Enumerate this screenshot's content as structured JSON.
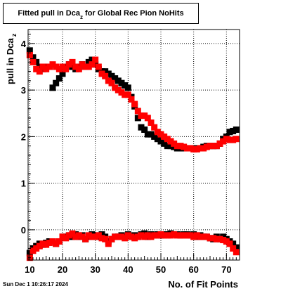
{
  "title": {
    "main": "Fitted pull in Dca",
    "subscript": "z",
    "suffix": "for Global Rec Pion NoHits"
  },
  "timestamp": "Sun Dec  1 10:26:17 2024",
  "chart_data": {
    "type": "scatter",
    "xlabel": "No. of Fit Points",
    "ylabel": "pull in Dca",
    "ylabel_subscript": "z",
    "xlim": [
      9.5,
      74
    ],
    "ylim": [
      -0.65,
      4.3
    ],
    "x_ticks": [
      10,
      20,
      30,
      40,
      50,
      60,
      70
    ],
    "y_ticks": [
      0,
      1,
      2,
      3,
      4
    ],
    "grid": true,
    "legend": "none",
    "series": [
      {
        "color": "#000000",
        "x": [
          10,
          11,
          12,
          13,
          14,
          15,
          16,
          17,
          18,
          19,
          20,
          21,
          22,
          23,
          24,
          25,
          26,
          27,
          28,
          29,
          30,
          31,
          32,
          33,
          34,
          35,
          36,
          37,
          38,
          39,
          40,
          41,
          42,
          43,
          44,
          45,
          46,
          47,
          48,
          49,
          50,
          51,
          52,
          53,
          54,
          55,
          56,
          57,
          58,
          59,
          60,
          61,
          62,
          63,
          64,
          65,
          66,
          67,
          68,
          69,
          70,
          71,
          72,
          73
        ],
        "y": [
          3.85,
          3.7,
          3.6,
          3.5,
          3.45,
          3.5,
          3.5,
          3.05,
          3.15,
          3.25,
          3.35,
          3.5,
          3.55,
          3.5,
          3.45,
          3.5,
          3.55,
          3.5,
          3.6,
          3.65,
          3.55,
          3.45,
          3.4,
          3.4,
          3.35,
          3.3,
          3.25,
          3.2,
          3.15,
          3.1,
          3.05,
          2.85,
          2.65,
          2.4,
          2.2,
          2.15,
          2.05,
          2.05,
          2.0,
          1.95,
          1.9,
          1.85,
          1.8,
          1.8,
          1.78,
          1.75,
          1.75,
          1.75,
          1.75,
          1.75,
          1.75,
          1.75,
          1.75,
          1.78,
          1.8,
          1.8,
          1.8,
          1.8,
          1.85,
          1.95,
          2.0,
          2.1,
          2.12,
          2.15
        ]
      },
      {
        "color": "#ff0000",
        "x": [
          10,
          11,
          12,
          13,
          14,
          15,
          16,
          17,
          18,
          19,
          20,
          21,
          22,
          23,
          24,
          25,
          26,
          27,
          28,
          29,
          30,
          31,
          32,
          33,
          34,
          35,
          36,
          37,
          38,
          39,
          40,
          41,
          42,
          43,
          44,
          45,
          46,
          47,
          48,
          49,
          50,
          51,
          52,
          53,
          54,
          55,
          56,
          57,
          58,
          59,
          60,
          61,
          62,
          63,
          64,
          65,
          66,
          67,
          68,
          69,
          70,
          71,
          72,
          73
        ],
        "y": [
          3.75,
          3.6,
          3.45,
          3.4,
          3.5,
          3.45,
          3.5,
          3.55,
          3.5,
          3.45,
          3.5,
          3.45,
          3.55,
          3.6,
          3.5,
          3.45,
          3.55,
          3.5,
          3.5,
          3.55,
          3.65,
          3.5,
          3.35,
          3.3,
          3.2,
          3.15,
          3.05,
          3.0,
          2.95,
          2.9,
          2.9,
          2.8,
          2.7,
          2.55,
          2.45,
          2.45,
          2.4,
          2.3,
          2.2,
          2.1,
          2.05,
          2.0,
          1.95,
          1.9,
          1.85,
          1.8,
          1.8,
          1.78,
          1.75,
          1.75,
          1.73,
          1.73,
          1.75,
          1.75,
          1.78,
          1.8,
          1.8,
          1.8,
          1.85,
          1.9,
          1.95,
          1.93,
          1.93,
          1.95
        ]
      },
      {
        "color": "#000000",
        "x": [
          10,
          11,
          12,
          13,
          14,
          15,
          16,
          17,
          18,
          19,
          20,
          21,
          22,
          23,
          24,
          25,
          26,
          27,
          28,
          29,
          30,
          31,
          32,
          33,
          34,
          35,
          36,
          37,
          38,
          39,
          40,
          41,
          42,
          43,
          44,
          45,
          46,
          47,
          48,
          49,
          50,
          51,
          52,
          53,
          54,
          55,
          56,
          57,
          58,
          59,
          60,
          61,
          62,
          63,
          64,
          65,
          66,
          67,
          68,
          69,
          70,
          71,
          72,
          73
        ],
        "y": [
          -0.5,
          -0.4,
          -0.35,
          -0.3,
          -0.32,
          -0.28,
          -0.25,
          -0.25,
          -0.3,
          -0.25,
          -0.15,
          -0.15,
          -0.12,
          -0.15,
          -0.1,
          -0.15,
          -0.12,
          -0.2,
          -0.15,
          -0.1,
          -0.12,
          -0.15,
          -0.1,
          -0.15,
          -0.25,
          -0.2,
          -0.15,
          -0.15,
          -0.12,
          -0.15,
          -0.1,
          -0.15,
          -0.12,
          -0.15,
          -0.1,
          -0.08,
          -0.15,
          -0.1,
          -0.12,
          -0.1,
          -0.12,
          -0.1,
          -0.1,
          -0.08,
          -0.1,
          -0.1,
          -0.12,
          -0.1,
          -0.1,
          -0.12,
          -0.1,
          -0.15,
          -0.12,
          -0.15,
          -0.15,
          -0.18,
          -0.2,
          -0.15,
          -0.2,
          -0.15,
          -0.2,
          -0.25,
          -0.3,
          -0.38
        ]
      },
      {
        "color": "#ff0000",
        "x": [
          10,
          11,
          12,
          13,
          14,
          15,
          16,
          17,
          18,
          19,
          20,
          21,
          22,
          23,
          24,
          25,
          26,
          27,
          28,
          29,
          30,
          31,
          32,
          33,
          34,
          35,
          36,
          37,
          38,
          39,
          40,
          41,
          42,
          43,
          44,
          45,
          46,
          47,
          48,
          49,
          50,
          51,
          52,
          53,
          54,
          55,
          56,
          57,
          58,
          59,
          60,
          61,
          62,
          63,
          64,
          65,
          66,
          67,
          68,
          69,
          70,
          71,
          72,
          73
        ],
        "y": [
          -0.6,
          -0.45,
          -0.4,
          -0.35,
          -0.3,
          -0.32,
          -0.28,
          -0.25,
          -0.3,
          -0.25,
          -0.15,
          -0.18,
          -0.12,
          -0.08,
          -0.15,
          -0.12,
          -0.15,
          -0.2,
          -0.12,
          -0.15,
          -0.15,
          -0.12,
          -0.18,
          -0.2,
          -0.3,
          -0.2,
          -0.15,
          -0.15,
          -0.15,
          -0.18,
          -0.12,
          -0.15,
          -0.18,
          -0.15,
          -0.12,
          -0.15,
          -0.12,
          -0.15,
          -0.12,
          -0.12,
          -0.1,
          -0.12,
          -0.12,
          -0.12,
          -0.1,
          -0.12,
          -0.12,
          -0.12,
          -0.12,
          -0.12,
          -0.15,
          -0.12,
          -0.15,
          -0.15,
          -0.15,
          -0.18,
          -0.18,
          -0.2,
          -0.2,
          -0.22,
          -0.25,
          -0.3,
          -0.4,
          -0.48
        ]
      }
    ]
  }
}
